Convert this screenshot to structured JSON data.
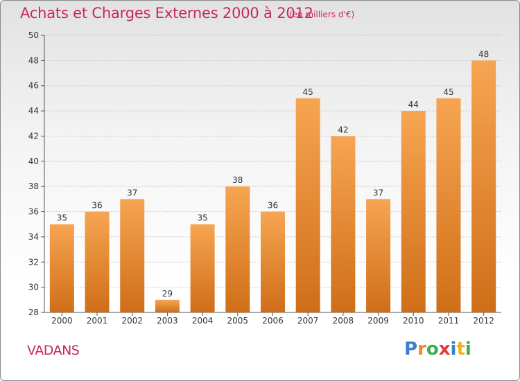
{
  "header": {
    "title": "Achats et Charges Externes 2000 à 2012",
    "subtitle": "(en milliers d'€)"
  },
  "footer": {
    "place": "VADANS",
    "logo_text": "Proxiti",
    "logo_letters": [
      {
        "char": "P",
        "color": "#3a7fd0"
      },
      {
        "char": "r",
        "color": "#f08a1c"
      },
      {
        "char": "o",
        "color": "#3ab04a"
      },
      {
        "char": "x",
        "color": "#e23b3b"
      },
      {
        "char": "i",
        "color": "#3a7fd0"
      },
      {
        "char": "t",
        "color": "#f0b01c"
      },
      {
        "char": "i",
        "color": "#3ab04a"
      }
    ]
  },
  "colors": {
    "bar_top": "#f6a552",
    "bar_bottom": "#d06e18",
    "axis": "#555555",
    "grid": "#c8c8c8",
    "title": "#c8285a"
  },
  "chart_data": {
    "type": "bar",
    "categories": [
      "2000",
      "2001",
      "2002",
      "2003",
      "2004",
      "2005",
      "2006",
      "2007",
      "2008",
      "2009",
      "2010",
      "2011",
      "2012"
    ],
    "values": [
      35,
      36,
      37,
      29,
      35,
      38,
      36,
      45,
      42,
      37,
      44,
      45,
      48
    ],
    "title": "Achats et Charges Externes 2000 à 2012",
    "subtitle": "(en milliers d'€)",
    "xlabel": "",
    "ylabel": "",
    "ylim": [
      28,
      50
    ],
    "yticks": [
      28,
      30,
      32,
      34,
      36,
      38,
      40,
      42,
      44,
      46,
      48,
      50
    ],
    "grid": true,
    "legend": "none"
  }
}
